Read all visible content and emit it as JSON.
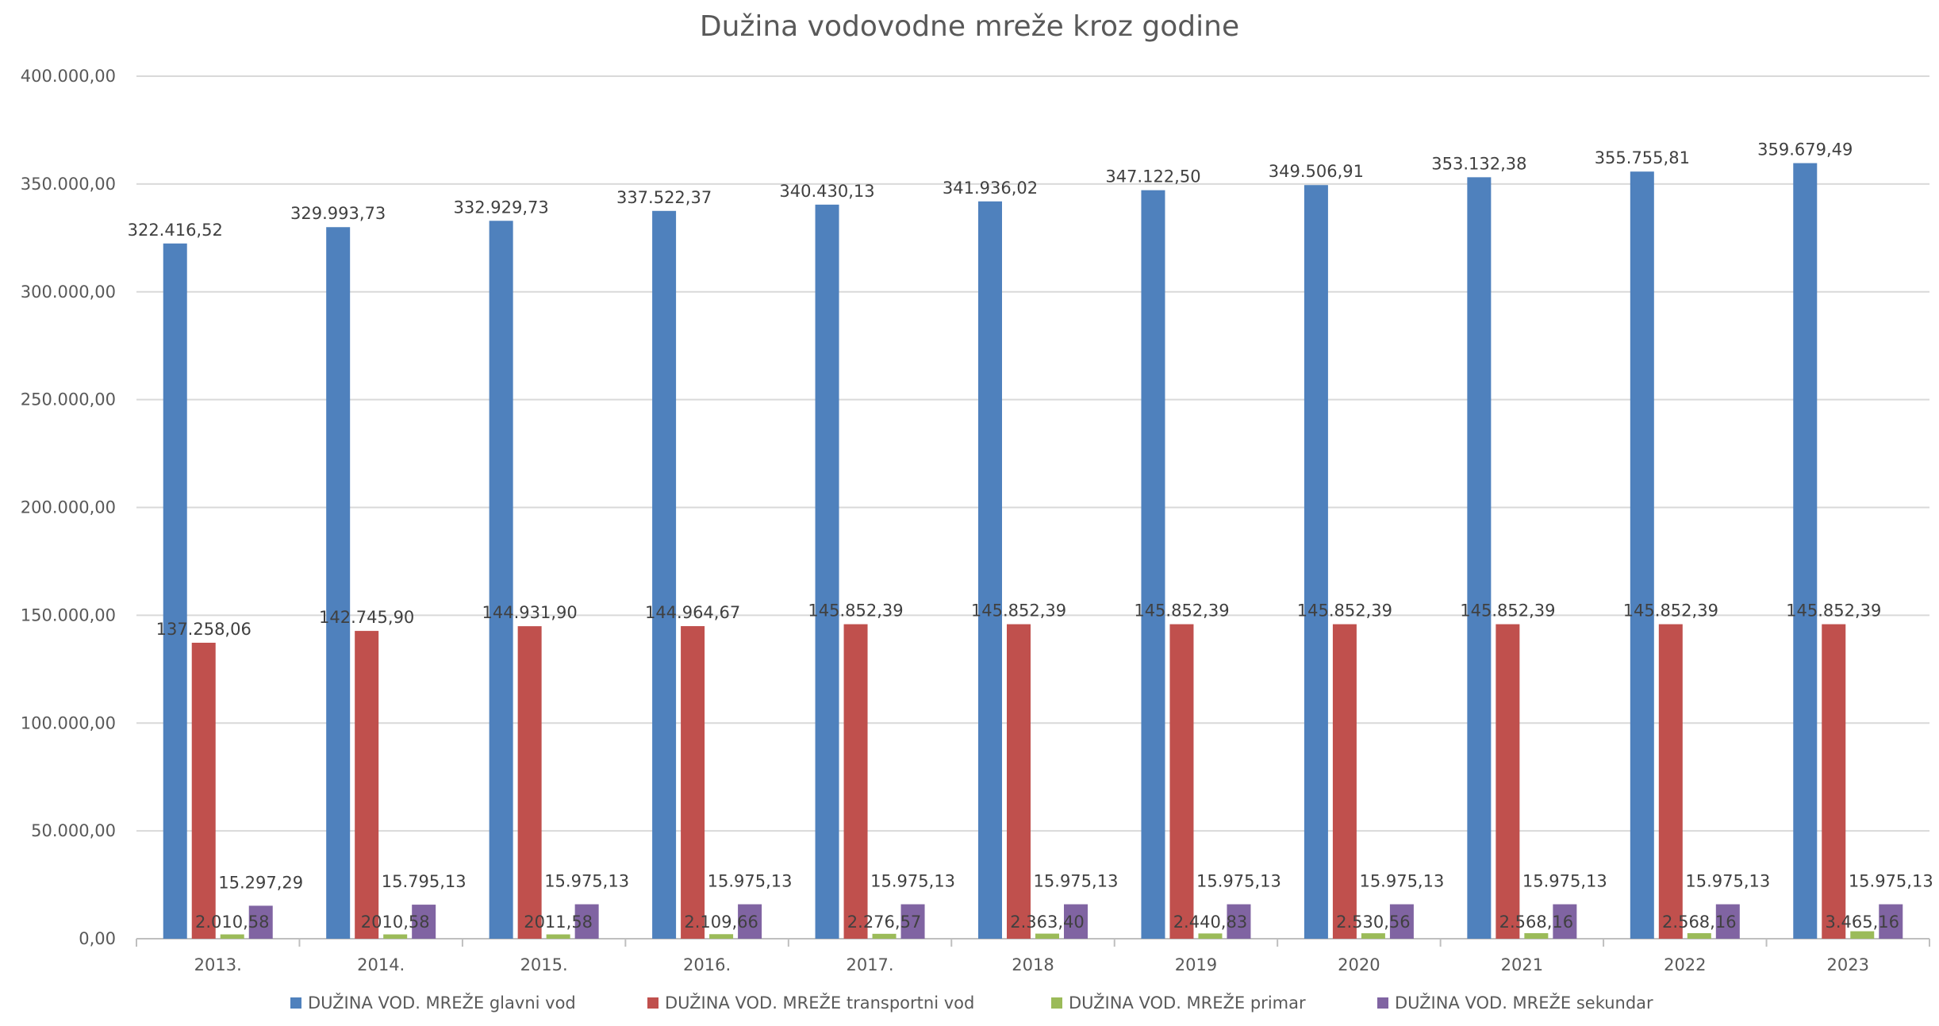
{
  "chart_data": {
    "type": "bar",
    "title": "Dužina vodovodne mreže kroz godine",
    "categories": [
      "2013.",
      "2014.",
      "2015.",
      "2016.",
      "2017.",
      "2018",
      "2019",
      "2020",
      "2021",
      "2022",
      "2023"
    ],
    "series": [
      {
        "name": "DUŽINA VOD. MREŽE glavni vod",
        "color": "#4f81bd",
        "values": [
          322416.52,
          329993.73,
          332929.73,
          337522.37,
          340430.13,
          341936.02,
          347122.5,
          349506.91,
          353132.38,
          355755.81,
          359679.49
        ],
        "labels": [
          "322.416,52",
          "329.993,73",
          "332.929,73",
          "337.522,37",
          "340.430,13",
          "341.936,02",
          "347.122,50",
          "349.506,91",
          "353.132,38",
          "355.755,81",
          "359.679,49"
        ]
      },
      {
        "name": "DUŽINA VOD. MREŽE transportni vod",
        "color": "#c0504d",
        "values": [
          137258.06,
          142745.9,
          144931.9,
          144964.67,
          145852.39,
          145852.39,
          145852.39,
          145852.39,
          145852.39,
          145852.39,
          145852.39
        ],
        "labels": [
          "137.258,06",
          "142.745,90",
          "144.931,90",
          "144.964,67",
          "145.852,39",
          "145.852,39",
          "145.852,39",
          "145.852,39",
          "145.852,39",
          "145.852,39",
          "145.852,39"
        ]
      },
      {
        "name": "DUŽINA VOD. MREŽE primar",
        "color": "#9bbb59",
        "values": [
          2010.58,
          2010.58,
          2011.58,
          2109.66,
          2276.57,
          2363.4,
          2440.83,
          2530.56,
          2568.16,
          2568.16,
          3465.16
        ],
        "labels": [
          "2.010,58",
          "2010,58",
          "2011,58",
          "2.109,66",
          "2.276,57",
          "2.363,40",
          "2.440,83",
          "2.530,56",
          "2.568,16",
          "2.568,16",
          "3.465,16"
        ]
      },
      {
        "name": "DUŽINA VOD. MREŽE sekundar",
        "color": "#8064a2",
        "values": [
          15297.29,
          15795.13,
          15975.13,
          15975.13,
          15975.13,
          15975.13,
          15975.13,
          15975.13,
          15975.13,
          15975.13,
          15975.13
        ],
        "labels": [
          "15.297,29",
          "15.795,13",
          "15.975,13",
          "15.975,13",
          "15.975,13",
          "15.975,13",
          "15.975,13",
          "15.975,13",
          "15.975,13",
          "15.975,13",
          "15.975,13"
        ]
      }
    ],
    "ylim": [
      0,
      400000
    ],
    "yticks": [
      0,
      50000,
      100000,
      150000,
      200000,
      250000,
      300000,
      350000,
      400000
    ],
    "ytick_labels": [
      "0,00",
      "50.000,00",
      "100.000,00",
      "150.000,00",
      "200.000,00",
      "250.000,00",
      "300.000,00",
      "350.000,00",
      "400.000,00"
    ],
    "grid": true,
    "legend_position": "bottom",
    "xlabel": "",
    "ylabel": ""
  }
}
